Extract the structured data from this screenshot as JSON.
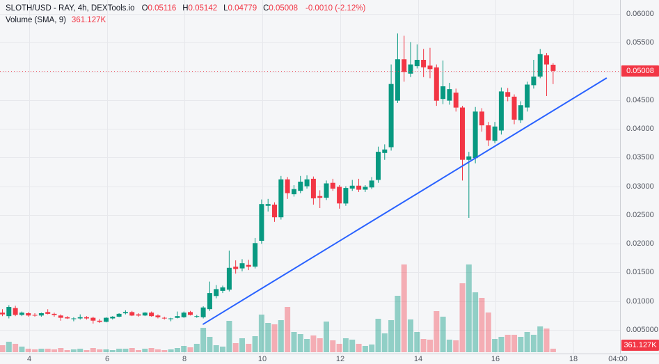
{
  "legend": {
    "symbol": "SLOTH/USD - RAY, 4h, DEXTools.io",
    "ohlc": {
      "o_label": "O",
      "o": "0.05116",
      "h_label": "H",
      "h": "0.05142",
      "l_label": "L",
      "l": "0.04779",
      "c_label": "C",
      "c": "0.05008"
    },
    "change": "-0.0010 (-2.12%)",
    "volume_label": "Volume (SMA, 9)",
    "volume_value": "361.127K"
  },
  "price_badge": "0.05008",
  "volume_badge": "361.127K",
  "colors": {
    "up": "#089981",
    "down": "#f23645",
    "vol_up": "rgba(8,153,129,0.42)",
    "vol_down": "rgba(242,54,69,0.38)",
    "trendline": "#2962ff",
    "price_line": "#f23645",
    "grid": "#e7e8ec",
    "badge_bg": "#f23645"
  },
  "chart_data": {
    "type": "candlestick+volume",
    "title": "SLOTH/USD - RAY, 4h, DEXTools.io",
    "interval": "4h",
    "legend_note": "Volume (SMA, 9) = 361.127K",
    "price_axis_ticks": [
      "0.06000",
      "0.05500",
      "0.05000",
      "0.04500",
      "0.04000",
      "0.03500",
      "0.03000",
      "0.02500",
      "0.02000",
      "0.01500",
      "0.01000",
      "0.005000"
    ],
    "price_axis_values": [
      0.06,
      0.055,
      0.05,
      0.045,
      0.04,
      0.035,
      0.03,
      0.025,
      0.02,
      0.015,
      0.01,
      0.005
    ],
    "time_axis_ticks": [
      "4",
      "6",
      "8",
      "10",
      "12",
      "14",
      "16",
      "18",
      "04:00"
    ],
    "current_price": 0.05008,
    "last_candle": {
      "open": 0.05116,
      "high": 0.05142,
      "low": 0.04779,
      "close": 0.05008,
      "change": "-0.0010",
      "change_pct": "-2.12%"
    },
    "candles_format": [
      "open",
      "high",
      "low",
      "close",
      "volume_rel"
    ],
    "volume_note": "volume_rel is relative bar height; last bar corresponds to 361.127K",
    "candles": [
      [
        0.008,
        0.0086,
        0.0074,
        0.0077,
        10
      ],
      [
        0.0074,
        0.0093,
        0.007,
        0.009,
        15
      ],
      [
        0.0088,
        0.0092,
        0.0074,
        0.0076,
        12
      ],
      [
        0.0076,
        0.0082,
        0.0074,
        0.008,
        8
      ],
      [
        0.0079,
        0.0081,
        0.0073,
        0.0075,
        5
      ],
      [
        0.0076,
        0.0079,
        0.0073,
        0.0075,
        4
      ],
      [
        0.0075,
        0.008,
        0.0073,
        0.0079,
        5
      ],
      [
        0.0081,
        0.0086,
        0.0077,
        0.0078,
        5
      ],
      [
        0.0078,
        0.008,
        0.0073,
        0.0076,
        4
      ],
      [
        0.0075,
        0.0077,
        0.0066,
        0.0071,
        6
      ],
      [
        0.0072,
        0.0074,
        0.0069,
        0.007,
        3
      ],
      [
        0.007,
        0.0072,
        0.0065,
        0.007,
        4
      ],
      [
        0.007,
        0.0077,
        0.0068,
        0.0072,
        5
      ],
      [
        0.0072,
        0.0074,
        0.0068,
        0.007,
        3
      ],
      [
        0.0071,
        0.0073,
        0.0061,
        0.0066,
        6
      ],
      [
        0.0066,
        0.0069,
        0.0062,
        0.0064,
        4
      ],
      [
        0.0064,
        0.0072,
        0.0063,
        0.0071,
        4
      ],
      [
        0.007,
        0.0074,
        0.0068,
        0.0073,
        3
      ],
      [
        0.0073,
        0.0079,
        0.0072,
        0.0078,
        5
      ],
      [
        0.0079,
        0.0084,
        0.0077,
        0.0081,
        5
      ],
      [
        0.0081,
        0.0083,
        0.0074,
        0.0075,
        6
      ],
      [
        0.0077,
        0.0079,
        0.0073,
        0.0075,
        3
      ],
      [
        0.0075,
        0.0081,
        0.0074,
        0.008,
        5
      ],
      [
        0.008,
        0.0082,
        0.0073,
        0.0074,
        6
      ],
      [
        0.0075,
        0.0077,
        0.007,
        0.0072,
        4
      ],
      [
        0.0071,
        0.0073,
        0.0068,
        0.007,
        3
      ],
      [
        0.0069,
        0.0071,
        0.0065,
        0.007,
        4
      ],
      [
        0.0071,
        0.0082,
        0.007,
        0.0074,
        6
      ],
      [
        0.0072,
        0.0082,
        0.0071,
        0.008,
        9
      ],
      [
        0.0081,
        0.0083,
        0.0075,
        0.0076,
        7
      ],
      [
        0.0073,
        0.0076,
        0.0071,
        0.0074,
        12
      ],
      [
        0.0072,
        0.0091,
        0.007,
        0.0089,
        35
      ],
      [
        0.0086,
        0.0134,
        0.0083,
        0.0114,
        22
      ],
      [
        0.0109,
        0.0128,
        0.0105,
        0.0121,
        10
      ],
      [
        0.0118,
        0.0127,
        0.0114,
        0.0124,
        8
      ],
      [
        0.012,
        0.0188,
        0.0117,
        0.0158,
        45
      ],
      [
        0.016,
        0.0171,
        0.0148,
        0.0156,
        13
      ],
      [
        0.0157,
        0.0173,
        0.0152,
        0.0166,
        20
      ],
      [
        0.0163,
        0.0172,
        0.0154,
        0.016,
        12
      ],
      [
        0.016,
        0.021,
        0.0157,
        0.0201,
        23
      ],
      [
        0.0205,
        0.0277,
        0.02,
        0.0269,
        54
      ],
      [
        0.0266,
        0.0278,
        0.0256,
        0.0269,
        42
      ],
      [
        0.0268,
        0.0272,
        0.0238,
        0.0246,
        40
      ],
      [
        0.0246,
        0.0318,
        0.0242,
        0.0312,
        46
      ],
      [
        0.0312,
        0.0316,
        0.0278,
        0.0288,
        65
      ],
      [
        0.0286,
        0.0302,
        0.0282,
        0.0295,
        29
      ],
      [
        0.0292,
        0.0318,
        0.0288,
        0.0308,
        26
      ],
      [
        0.03,
        0.0319,
        0.0296,
        0.0312,
        19
      ],
      [
        0.0313,
        0.0317,
        0.0268,
        0.0279,
        24
      ],
      [
        0.0283,
        0.0293,
        0.0262,
        0.028,
        20
      ],
      [
        0.028,
        0.031,
        0.0276,
        0.0305,
        44
      ],
      [
        0.0306,
        0.0313,
        0.0292,
        0.0296,
        17
      ],
      [
        0.0299,
        0.0302,
        0.0261,
        0.027,
        12
      ],
      [
        0.027,
        0.03,
        0.0266,
        0.0297,
        20
      ],
      [
        0.0296,
        0.0311,
        0.0292,
        0.0301,
        18
      ],
      [
        0.0301,
        0.0313,
        0.029,
        0.0294,
        12
      ],
      [
        0.0294,
        0.0302,
        0.029,
        0.0299,
        9
      ],
      [
        0.0298,
        0.0316,
        0.0295,
        0.031,
        11
      ],
      [
        0.0311,
        0.0369,
        0.0306,
        0.036,
        48
      ],
      [
        0.0358,
        0.0373,
        0.0346,
        0.0364,
        27
      ],
      [
        0.0368,
        0.0512,
        0.0362,
        0.0478,
        46
      ],
      [
        0.0449,
        0.0566,
        0.0445,
        0.0521,
        81
      ],
      [
        0.0521,
        0.0562,
        0.0482,
        0.0499,
        126
      ],
      [
        0.0496,
        0.0551,
        0.049,
        0.0512,
        47
      ],
      [
        0.0509,
        0.0547,
        0.0505,
        0.052,
        29
      ],
      [
        0.052,
        0.0539,
        0.049,
        0.0507,
        19
      ],
      [
        0.051,
        0.0541,
        0.0488,
        0.0504,
        18
      ],
      [
        0.0507,
        0.0512,
        0.044,
        0.0449,
        59
      ],
      [
        0.0452,
        0.0519,
        0.0443,
        0.0474,
        51
      ],
      [
        0.0449,
        0.048,
        0.0442,
        0.0469,
        18
      ],
      [
        0.0463,
        0.047,
        0.043,
        0.0437,
        17
      ],
      [
        0.0437,
        0.044,
        0.031,
        0.0346,
        99
      ],
      [
        0.0346,
        0.036,
        0.0245,
        0.0352,
        126
      ],
      [
        0.0349,
        0.0438,
        0.034,
        0.043,
        86
      ],
      [
        0.043,
        0.0436,
        0.0395,
        0.0406,
        78
      ],
      [
        0.0406,
        0.0412,
        0.037,
        0.038,
        57
      ],
      [
        0.0379,
        0.0412,
        0.0375,
        0.0404,
        19
      ],
      [
        0.0397,
        0.0472,
        0.039,
        0.0465,
        22
      ],
      [
        0.0464,
        0.0471,
        0.0448,
        0.0456,
        25
      ],
      [
        0.0456,
        0.046,
        0.0408,
        0.0416,
        25
      ],
      [
        0.0415,
        0.0448,
        0.041,
        0.0441,
        22
      ],
      [
        0.0437,
        0.0482,
        0.043,
        0.0477,
        29
      ],
      [
        0.0476,
        0.052,
        0.047,
        0.0491,
        25
      ],
      [
        0.0491,
        0.0539,
        0.0488,
        0.053,
        37
      ],
      [
        0.0528,
        0.0532,
        0.0457,
        0.0512,
        34
      ],
      [
        0.05116,
        0.05142,
        0.04779,
        0.05008,
        5
      ]
    ],
    "trendline": {
      "i1": 31,
      "price1": 0.006,
      "i2": 93.2,
      "price2": 0.0488
    },
    "axis_ranges": {
      "price_min_visible": 0.005,
      "price_max_visible": 0.06,
      "grid": true
    }
  }
}
